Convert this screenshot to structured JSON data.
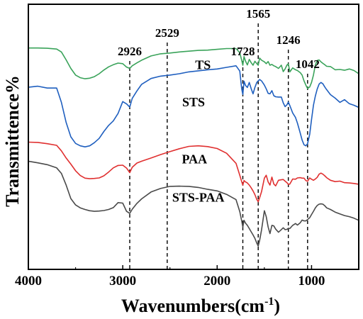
{
  "chart_data": {
    "type": "line",
    "title": "",
    "xlabel": "Wavenumbers(cm",
    "xlabel_sup": "-1",
    "xlabel_close": ")",
    "ylabel": "Transmittence%",
    "xlim": [
      4000,
      500
    ],
    "x_reversed": true,
    "x_ticks": [
      4000,
      3000,
      2000,
      1000
    ],
    "y_ticks_shown": false,
    "grid": false,
    "legend": "none (series labelled directly on curves)",
    "reference_lines": [
      {
        "x": 2926,
        "label": "2926"
      },
      {
        "x": 2529,
        "label": "2529"
      },
      {
        "x": 1728,
        "label": "1728"
      },
      {
        "x": 1565,
        "label": "1565"
      },
      {
        "x": 1246,
        "label": "1246"
      },
      {
        "x": 1042,
        "label": "1042"
      }
    ],
    "reference_line_style": "dashed black",
    "units_note": "y values are relative transmittance on the plot scale (0 = bottom of axes, 1 = top); curves are vertically offset",
    "series": [
      {
        "name": "TS",
        "color": "#3aa35a",
        "x": [
          4000,
          3900,
          3800,
          3700,
          3650,
          3600,
          3550,
          3500,
          3450,
          3400,
          3350,
          3300,
          3250,
          3200,
          3150,
          3100,
          3050,
          3000,
          2960,
          2926,
          2900,
          2850,
          2800,
          2700,
          2600,
          2500,
          2400,
          2300,
          2200,
          2100,
          2000,
          1900,
          1800,
          1760,
          1740,
          1728,
          1715,
          1700,
          1680,
          1660,
          1640,
          1620,
          1600,
          1580,
          1565,
          1550,
          1530,
          1500,
          1480,
          1460,
          1440,
          1420,
          1400,
          1380,
          1350,
          1320,
          1300,
          1280,
          1260,
          1246,
          1230,
          1200,
          1170,
          1150,
          1120,
          1100,
          1080,
          1060,
          1042,
          1020,
          1000,
          980,
          960,
          940,
          920,
          900,
          880,
          860,
          840,
          800,
          750,
          700,
          650,
          600,
          550,
          500
        ],
        "y": [
          0.835,
          0.835,
          0.834,
          0.831,
          0.82,
          0.79,
          0.758,
          0.733,
          0.723,
          0.719,
          0.721,
          0.727,
          0.738,
          0.752,
          0.764,
          0.772,
          0.778,
          0.776,
          0.763,
          0.758,
          0.768,
          0.779,
          0.789,
          0.805,
          0.813,
          0.816,
          0.82,
          0.823,
          0.826,
          0.827,
          0.83,
          0.833,
          0.833,
          0.817,
          0.789,
          0.77,
          0.803,
          0.786,
          0.771,
          0.792,
          0.78,
          0.77,
          0.785,
          0.776,
          0.77,
          0.797,
          0.789,
          0.783,
          0.776,
          0.784,
          0.77,
          0.773,
          0.768,
          0.765,
          0.758,
          0.77,
          0.746,
          0.756,
          0.771,
          0.775,
          0.745,
          0.76,
          0.753,
          0.75,
          0.742,
          0.733,
          0.711,
          0.695,
          0.682,
          0.688,
          0.705,
          0.733,
          0.771,
          0.788,
          0.79,
          0.783,
          0.777,
          0.772,
          0.766,
          0.765,
          0.753,
          0.754,
          0.751,
          0.756,
          0.75,
          0.738
        ]
      },
      {
        "name": "STS",
        "color": "#1f5fbf",
        "x": [
          4000,
          3900,
          3800,
          3700,
          3650,
          3600,
          3550,
          3500,
          3450,
          3400,
          3350,
          3300,
          3250,
          3200,
          3150,
          3100,
          3050,
          3000,
          2960,
          2926,
          2900,
          2850,
          2800,
          2700,
          2600,
          2500,
          2400,
          2300,
          2200,
          2100,
          2000,
          1900,
          1800,
          1760,
          1740,
          1728,
          1715,
          1700,
          1680,
          1660,
          1640,
          1620,
          1600,
          1580,
          1565,
          1550,
          1530,
          1500,
          1480,
          1460,
          1440,
          1420,
          1400,
          1380,
          1350,
          1320,
          1300,
          1280,
          1260,
          1246,
          1230,
          1200,
          1170,
          1150,
          1120,
          1100,
          1080,
          1060,
          1042,
          1020,
          1000,
          980,
          960,
          940,
          920,
          900,
          880,
          860,
          840,
          800,
          750,
          700,
          650,
          600,
          550,
          500
        ],
        "y": [
          0.687,
          0.691,
          0.684,
          0.684,
          0.63,
          0.554,
          0.5,
          0.475,
          0.466,
          0.462,
          0.466,
          0.478,
          0.494,
          0.52,
          0.543,
          0.56,
          0.588,
          0.633,
          0.624,
          0.612,
          0.645,
          0.673,
          0.698,
          0.72,
          0.729,
          0.733,
          0.738,
          0.745,
          0.749,
          0.753,
          0.756,
          0.762,
          0.768,
          0.748,
          0.681,
          0.66,
          0.71,
          0.694,
          0.686,
          0.705,
          0.682,
          0.662,
          0.686,
          0.705,
          0.711,
          0.716,
          0.711,
          0.695,
          0.681,
          0.664,
          0.662,
          0.674,
          0.655,
          0.651,
          0.65,
          0.65,
          0.628,
          0.614,
          0.621,
          0.631,
          0.618,
          0.59,
          0.573,
          0.552,
          0.514,
          0.488,
          0.47,
          0.466,
          0.474,
          0.509,
          0.565,
          0.619,
          0.654,
          0.68,
          0.699,
          0.705,
          0.7,
          0.688,
          0.678,
          0.659,
          0.646,
          0.63,
          0.64,
          0.625,
          0.619,
          0.611
        ]
      },
      {
        "name": "PAA",
        "color": "#e03030",
        "x": [
          4000,
          3900,
          3800,
          3700,
          3650,
          3600,
          3550,
          3500,
          3450,
          3400,
          3350,
          3300,
          3250,
          3200,
          3150,
          3100,
          3050,
          3000,
          2960,
          2926,
          2900,
          2850,
          2800,
          2700,
          2600,
          2500,
          2400,
          2300,
          2200,
          2100,
          2000,
          1900,
          1800,
          1760,
          1740,
          1728,
          1715,
          1700,
          1680,
          1660,
          1640,
          1620,
          1600,
          1580,
          1565,
          1550,
          1530,
          1500,
          1480,
          1460,
          1440,
          1420,
          1400,
          1380,
          1350,
          1320,
          1300,
          1280,
          1260,
          1246,
          1230,
          1200,
          1170,
          1150,
          1120,
          1100,
          1080,
          1060,
          1042,
          1020,
          1000,
          980,
          960,
          940,
          920,
          900,
          880,
          860,
          840,
          800,
          750,
          700,
          650,
          600,
          550,
          500
        ],
        "y": [
          0.48,
          0.479,
          0.474,
          0.468,
          0.447,
          0.42,
          0.397,
          0.372,
          0.354,
          0.344,
          0.342,
          0.343,
          0.345,
          0.353,
          0.367,
          0.383,
          0.392,
          0.393,
          0.382,
          0.365,
          0.385,
          0.401,
          0.408,
          0.42,
          0.433,
          0.444,
          0.455,
          0.464,
          0.466,
          0.463,
          0.456,
          0.438,
          0.4,
          0.355,
          0.331,
          0.318,
          0.335,
          0.33,
          0.326,
          0.318,
          0.308,
          0.296,
          0.282,
          0.264,
          0.255,
          0.27,
          0.293,
          0.344,
          0.355,
          0.33,
          0.318,
          0.348,
          0.322,
          0.315,
          0.336,
          0.338,
          0.339,
          0.333,
          0.327,
          0.32,
          0.322,
          0.341,
          0.34,
          0.345,
          0.346,
          0.344,
          0.344,
          0.335,
          0.332,
          0.345,
          0.34,
          0.336,
          0.341,
          0.347,
          0.359,
          0.363,
          0.359,
          0.353,
          0.346,
          0.336,
          0.331,
          0.333,
          0.327,
          0.326,
          0.324,
          0.321
        ]
      },
      {
        "name": "STS-PAA",
        "color": "#4a4a4a",
        "x": [
          4000,
          3900,
          3800,
          3700,
          3650,
          3600,
          3550,
          3500,
          3450,
          3400,
          3350,
          3300,
          3250,
          3200,
          3150,
          3100,
          3050,
          3000,
          2960,
          2926,
          2900,
          2850,
          2800,
          2700,
          2600,
          2500,
          2400,
          2300,
          2200,
          2100,
          2000,
          1900,
          1800,
          1760,
          1740,
          1728,
          1715,
          1700,
          1680,
          1660,
          1640,
          1620,
          1600,
          1580,
          1565,
          1550,
          1530,
          1500,
          1480,
          1460,
          1440,
          1420,
          1400,
          1380,
          1350,
          1320,
          1300,
          1280,
          1260,
          1246,
          1230,
          1200,
          1170,
          1150,
          1120,
          1100,
          1080,
          1060,
          1042,
          1020,
          1000,
          980,
          960,
          940,
          920,
          900,
          880,
          860,
          840,
          800,
          750,
          700,
          650,
          600,
          550,
          500
        ],
        "y": [
          0.408,
          0.402,
          0.395,
          0.383,
          0.362,
          0.318,
          0.267,
          0.243,
          0.232,
          0.226,
          0.221,
          0.219,
          0.22,
          0.222,
          0.226,
          0.233,
          0.252,
          0.25,
          0.219,
          0.211,
          0.227,
          0.249,
          0.266,
          0.292,
          0.305,
          0.313,
          0.314,
          0.313,
          0.309,
          0.302,
          0.296,
          0.283,
          0.263,
          0.218,
          0.183,
          0.16,
          0.185,
          0.175,
          0.166,
          0.154,
          0.142,
          0.13,
          0.117,
          0.099,
          0.088,
          0.109,
          0.149,
          0.221,
          0.199,
          0.16,
          0.135,
          0.166,
          0.164,
          0.152,
          0.14,
          0.15,
          0.157,
          0.15,
          0.151,
          0.155,
          0.154,
          0.166,
          0.173,
          0.167,
          0.176,
          0.186,
          0.183,
          0.183,
          0.188,
          0.195,
          0.207,
          0.219,
          0.232,
          0.241,
          0.246,
          0.247,
          0.246,
          0.24,
          0.232,
          0.226,
          0.216,
          0.209,
          0.203,
          0.199,
          0.193,
          0.185
        ]
      }
    ],
    "series_label_positions": {
      "TS": {
        "x": 2150,
        "y": 0.755
      },
      "STS": {
        "x": 2250,
        "y": 0.615
      },
      "PAA": {
        "x": 2240,
        "y": 0.4
      },
      "STS-PAA": {
        "x": 2200,
        "y": 0.255
      }
    }
  }
}
